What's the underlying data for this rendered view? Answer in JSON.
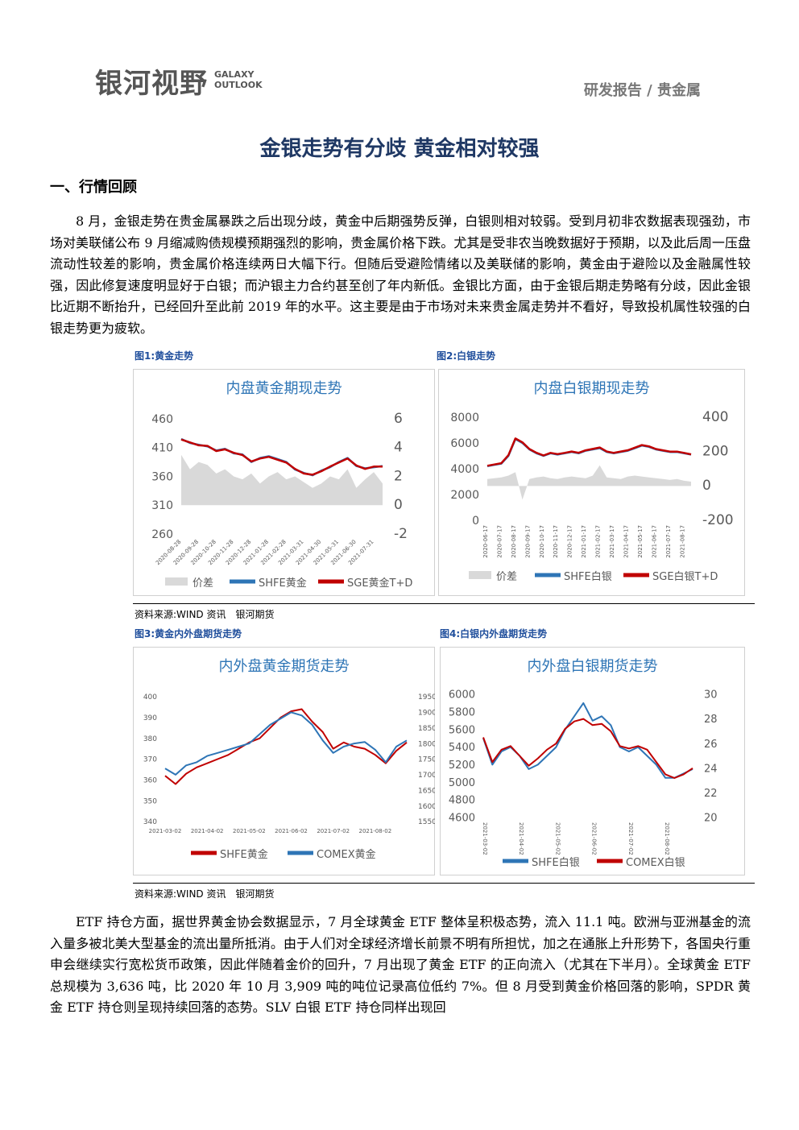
{
  "header": {
    "logo": "银河视野",
    "logo_en": "GALAXY OUTLOOK",
    "section": "研发报告 / 贵金属"
  },
  "title": "金银走势有分歧 黄金相对较强",
  "heading": "一、行情回顾",
  "paragraphs": [
    "8 月，金银走势在贵金属暴跌之后出现分歧，黄金中后期强势反弹，白银则相对较弱。受到月初非农数据表现强劲，市场对美联储公布 9 月缩减购债规模预期强烈的影响，贵金属价格下跌。尤其是受非农当晚数据好于预期，以及此后周一压盘流动性较差的影响，贵金属价格连续两日大幅下行。但随后受避险情绪以及美联储的影响，黄金由于避险以及金融属性较强，因此修复速度明显好于白银；而沪银主力合约甚至创了年内新低。金银比方面，由于金银后期走势略有分歧，因此金银比近期不断抬升，已经回升至此前 2019 年的水平。这主要是由于市场对未来贵金属走势并不看好，导致投机属性较强的白银走势更为疲软。",
    "ETF 持仓方面，据世界黄金协会数据显示，7 月全球黄金 ETF 整体呈积极态势，流入 11.1 吨。欧洲与亚洲基金的流入量多被北美大型基金的流出量所抵消。由于人们对全球经济增长前景不明有所担忧，加之在通胀上升形势下，各国央行重申会继续实行宽松货币政策，因此伴随着金价的回升，7 月出现了黄金 ETF 的正向流入（尤其在下半月）。全球黄金 ETF 总规模为 3,636 吨，比 2020 年 10 月 3,909 吨的吨位记录高位低约 7%。但 8 月受到黄金价格回落的影响，SPDR 黄金 ETF 持仓则呈现持续回落的态势。SLV 白银 ETF 持仓同样出现回"
  ],
  "sources": [
    "资料来源:WIND 资讯　银河期货",
    "资料来源:WIND 资讯　银河期货"
  ],
  "chart_data": [
    {
      "type": "line",
      "caption": "图1:黄金走势",
      "title": "内盘黄金期现走势",
      "categories": [
        "2020-08-28",
        null,
        "2020-09-28",
        null,
        "2020-10-28",
        null,
        "2020-11-28",
        null,
        "2020-12-28",
        null,
        "2021-01-28",
        null,
        "2021-02-28",
        null,
        "2021-03-31",
        null,
        "2021-04-30",
        null,
        "2021-05-31",
        null,
        "2021-06-30",
        null,
        "2021-07-31",
        null
      ],
      "series": [
        {
          "name": "价差",
          "type": "area",
          "axis": "y2",
          "color": "#d9d9d9",
          "values": [
            3.5,
            2.5,
            3,
            2.8,
            2.2,
            2.5,
            2,
            1.8,
            2.2,
            1.5,
            2,
            2.3,
            1.8,
            2,
            1.6,
            1.2,
            1.5,
            2,
            1.8,
            2.5,
            1.2,
            1.8,
            2.3,
            1.5
          ]
        },
        {
          "name": "SHFE黄金",
          "color": "#2e75b6",
          "values": [
            425,
            418,
            415,
            412,
            405,
            408,
            400,
            398,
            385,
            392,
            395,
            390,
            385,
            372,
            366,
            362,
            370,
            376,
            385,
            392,
            378,
            374,
            376,
            378
          ]
        },
        {
          "name": "SGE黄金T+D",
          "color": "#c00000",
          "values": [
            424,
            419,
            414,
            413,
            404,
            407,
            401,
            397,
            386,
            391,
            394,
            389,
            384,
            373,
            365,
            363,
            369,
            377,
            384,
            391,
            379,
            373,
            377,
            377
          ]
        }
      ],
      "ylim": [
        260,
        460
      ],
      "yticks": [
        260,
        310,
        360,
        410,
        460
      ],
      "y2lim": [
        -2,
        6
      ],
      "y2ticks": [
        -2,
        0,
        2,
        4,
        6
      ]
    },
    {
      "type": "line",
      "caption": "图2:白银走势",
      "title": "内盘白银期现走势",
      "categories": [
        "2020-06-17",
        null,
        "2020-07-17",
        null,
        "2020-08-17",
        null,
        "2020-09-17",
        null,
        "2020-10-17",
        null,
        "2020-11-17",
        null,
        "2020-12-17",
        null,
        "2021-01-17",
        null,
        "2021-02-17",
        null,
        "2021-03-17",
        null,
        "2021-04-17",
        null,
        "2021-05-17",
        null,
        "2021-06-17",
        null,
        "2021-07-17",
        null,
        "2021-08-17",
        null
      ],
      "series": [
        {
          "name": "价差",
          "type": "area",
          "axis": "y2",
          "color": "#d9d9d9",
          "values": [
            40,
            45,
            50,
            60,
            80,
            -80,
            40,
            50,
            55,
            45,
            40,
            50,
            55,
            50,
            45,
            60,
            120,
            50,
            45,
            40,
            55,
            60,
            55,
            50,
            45,
            40,
            35,
            40,
            30,
            25
          ]
        },
        {
          "name": "SHFE白银",
          "color": "#2e75b6",
          "values": [
            4200,
            4300,
            4400,
            5000,
            6300,
            6000,
            5500,
            5200,
            5000,
            5200,
            5100,
            5200,
            5300,
            5200,
            5400,
            5500,
            5600,
            5300,
            5200,
            5300,
            5400,
            5600,
            5800,
            5700,
            5500,
            5400,
            5300,
            5300,
            5200,
            5100
          ]
        },
        {
          "name": "SGE白银T+D",
          "color": "#c00000",
          "values": [
            4230,
            4330,
            4430,
            5050,
            6350,
            6050,
            5530,
            5240,
            5030,
            5230,
            5140,
            5230,
            5340,
            5240,
            5430,
            5540,
            5650,
            5340,
            5230,
            5340,
            5440,
            5640,
            5840,
            5740,
            5530,
            5430,
            5330,
            5330,
            5230,
            5120
          ]
        }
      ],
      "ylim": [
        0,
        8000
      ],
      "yticks": [
        0,
        2000,
        4000,
        6000,
        8000
      ],
      "y2lim": [
        -200,
        400
      ],
      "y2ticks": [
        -200,
        0,
        200,
        400
      ]
    },
    {
      "type": "line",
      "caption": "图3:黄金内外盘期货走势",
      "title": "内外盘黄金期货走势",
      "categories": [
        "2021-03-02",
        null,
        null,
        null,
        "2021-04-02",
        null,
        null,
        null,
        "2021-05-02",
        null,
        null,
        null,
        "2021-06-02",
        null,
        null,
        null,
        "2021-07-02",
        null,
        null,
        null,
        "2021-08-02",
        null,
        null,
        null
      ],
      "series": [
        {
          "name": "SHFE黄金",
          "color": "#c00000",
          "values": [
            362,
            358,
            363,
            366,
            368,
            370,
            372,
            375,
            378,
            380,
            385,
            390,
            393,
            394,
            388,
            383,
            375,
            378,
            376,
            375,
            372,
            368,
            374,
            378
          ]
        },
        {
          "name": "COMEX黄金",
          "axis": "y2",
          "color": "#2e75b6",
          "values": [
            1720,
            1700,
            1730,
            1740,
            1760,
            1770,
            1780,
            1790,
            1800,
            1830,
            1860,
            1880,
            1900,
            1890,
            1860,
            1810,
            1770,
            1790,
            1800,
            1805,
            1780,
            1740,
            1790,
            1810
          ]
        }
      ],
      "ylim": [
        340,
        400
      ],
      "yticks": [
        340,
        350,
        360,
        370,
        380,
        390,
        400
      ],
      "y2lim": [
        1550,
        1950
      ],
      "y2ticks": [
        1550,
        1600,
        1650,
        1700,
        1750,
        1800,
        1850,
        1900,
        1950
      ]
    },
    {
      "type": "line",
      "caption": "图4:白银内外盘期货走势",
      "title": "内外盘白银期货走势",
      "categories": [
        "2021-03-02",
        null,
        null,
        null,
        "2021-04-02",
        null,
        null,
        null,
        "2021-05-02",
        null,
        null,
        null,
        "2021-06-02",
        null,
        null,
        null,
        "2021-07-02",
        null,
        null,
        null,
        "2021-08-02",
        null,
        null,
        null
      ],
      "series": [
        {
          "name": "SHFE白银",
          "color": "#2e75b6",
          "values": [
            5500,
            5200,
            5350,
            5400,
            5300,
            5150,
            5200,
            5300,
            5400,
            5600,
            5750,
            5900,
            5700,
            5750,
            5650,
            5400,
            5350,
            5400,
            5300,
            5200,
            5050,
            5050,
            5100,
            5150
          ]
        },
        {
          "name": "COMEX白银",
          "axis": "y2",
          "color": "#c00000",
          "values": [
            26.5,
            24.5,
            25.5,
            25.8,
            25,
            24.2,
            24.8,
            25.5,
            26,
            27.2,
            27.8,
            28,
            27.5,
            27.6,
            27,
            25.8,
            25.6,
            25.8,
            25.5,
            24.5,
            23.5,
            23.2,
            23.5,
            24
          ]
        }
      ],
      "ylim": [
        4600,
        6000
      ],
      "yticks": [
        4600,
        4800,
        5000,
        5200,
        5400,
        5600,
        5800,
        6000
      ],
      "y2lim": [
        20,
        30
      ],
      "y2ticks": [
        20,
        22,
        24,
        26,
        28,
        30
      ]
    }
  ]
}
